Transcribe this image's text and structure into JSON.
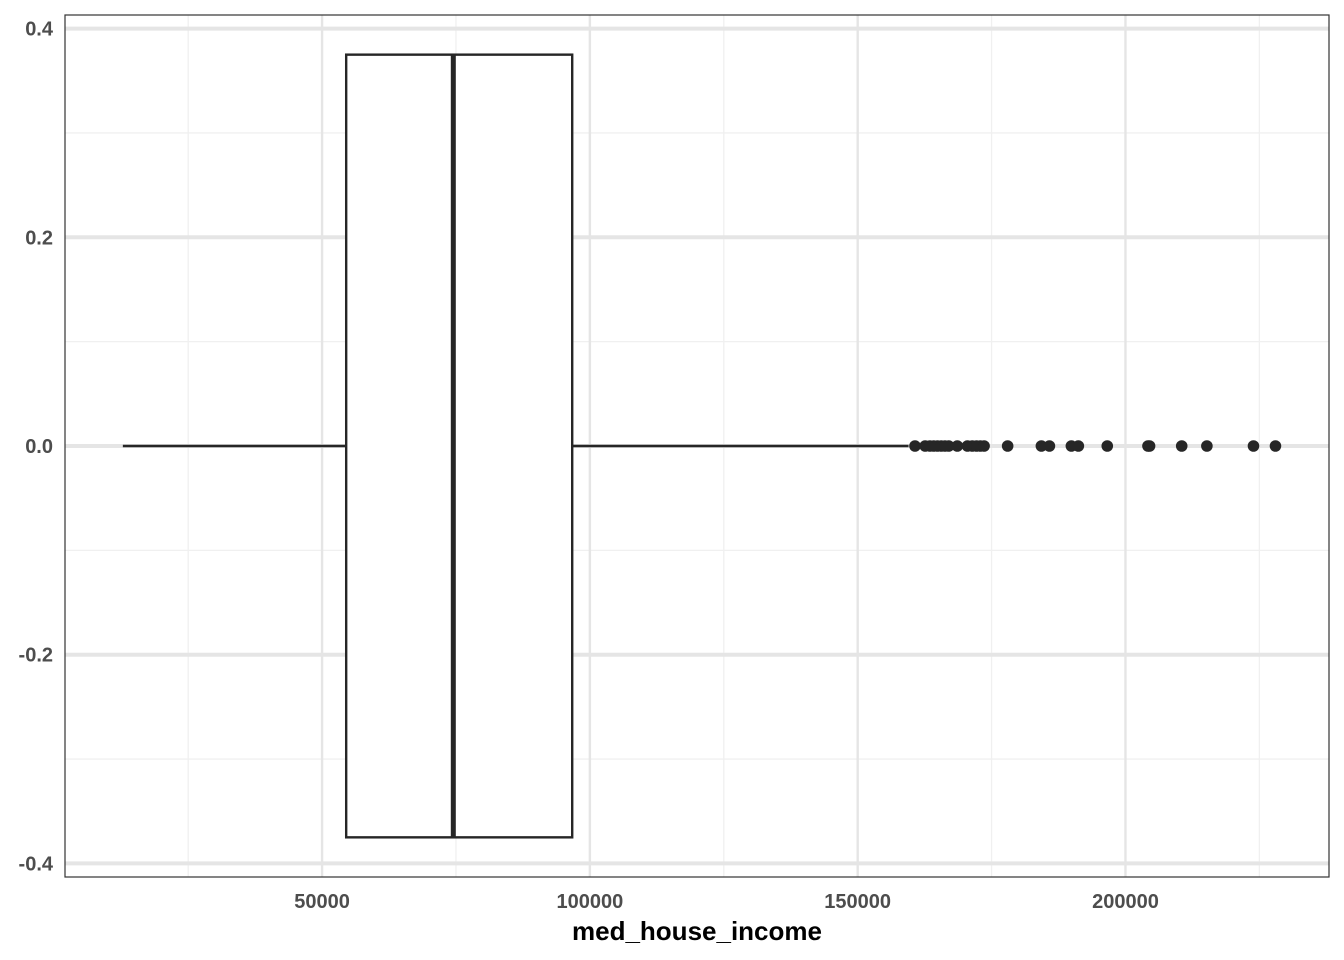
{
  "chart_data": {
    "type": "boxplot",
    "xlabel": "med_house_income",
    "ylabel": "",
    "title": "",
    "xlim": [
      2000,
      238000
    ],
    "ylim": [
      -0.413,
      0.413
    ],
    "x_ticks": [
      50000,
      100000,
      150000,
      200000
    ],
    "x_tick_labels": [
      "50000",
      "100000",
      "150000",
      "200000"
    ],
    "x_minor_ticks": [
      25000,
      75000,
      125000,
      175000,
      225000
    ],
    "y_ticks": [
      0.4,
      0.2,
      0.0,
      -0.2,
      -0.4
    ],
    "y_tick_labels": [
      "0.4",
      "0.2",
      "0.0",
      "-0.2",
      "-0.4"
    ],
    "y_minor_ticks": [
      0.3,
      0.1,
      -0.1,
      -0.3
    ],
    "grid": true,
    "box": {
      "whisker_low": 12800,
      "q1": 54500,
      "median": 74500,
      "q3": 96700,
      "whisker_high": 159500,
      "y_center": 0.0,
      "half_width": 0.375
    },
    "outliers": [
      160700,
      162600,
      163500,
      164200,
      164900,
      165600,
      166300,
      167000,
      168600,
      170500,
      171400,
      172200,
      172900,
      173600,
      178000,
      184300,
      185800,
      189900,
      191200,
      196600,
      204200,
      204500,
      210500,
      215200,
      223900,
      228000
    ],
    "colors": {
      "box_line": "#262626",
      "point": "#262626",
      "grid_major": "#e5e5e5",
      "grid_minor": "#f0f0f0",
      "panel_border": "#333333"
    }
  }
}
